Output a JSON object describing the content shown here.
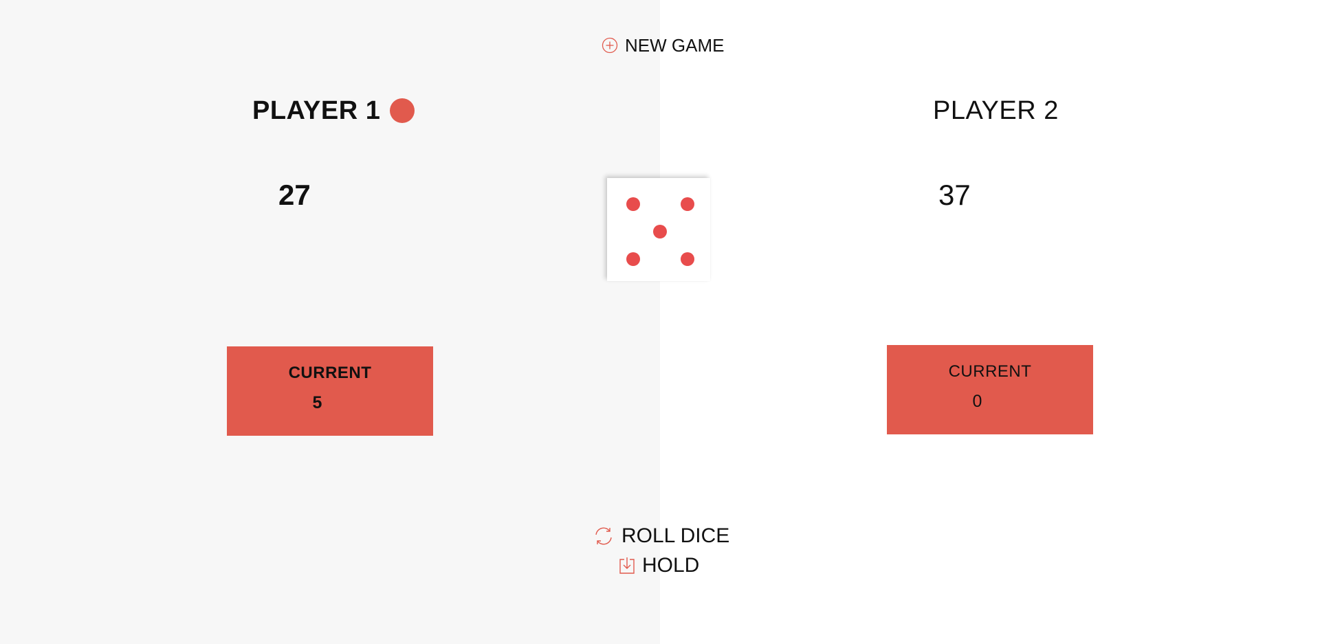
{
  "colors": {
    "accent": "#e15a4d",
    "pip": "#e84c4c",
    "left_bg": "#f7f7f7",
    "right_bg": "#ffffff"
  },
  "controls": {
    "new_game_label": "NEW GAME",
    "new_game_icon": "plus-circle-icon",
    "roll_dice_label": "ROLL DICE",
    "roll_dice_icon": "refresh-icon",
    "hold_label": "HOLD",
    "hold_icon": "download-icon"
  },
  "players": [
    {
      "name": "PLAYER 1",
      "score": "27",
      "current_label": "CURRENT",
      "current_value": "5",
      "active": true
    },
    {
      "name": "PLAYER 2",
      "score": "37",
      "current_label": "CURRENT",
      "current_value": "0",
      "active": false
    }
  ],
  "dice": {
    "value": 5
  }
}
